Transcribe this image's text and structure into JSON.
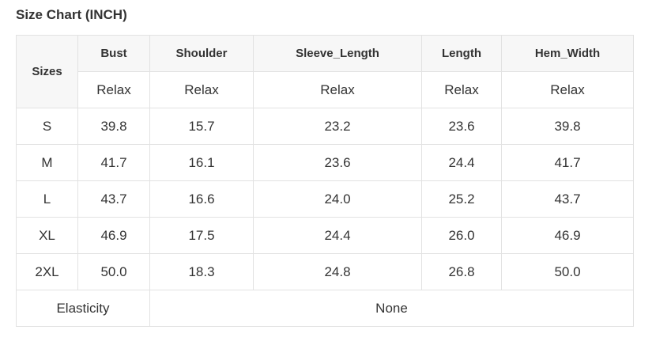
{
  "title": "Size Chart (INCH)",
  "header": {
    "sizes_label": "Sizes",
    "columns": [
      "Bust",
      "Shoulder",
      "Sleeve_Length",
      "Length",
      "Hem_Width"
    ],
    "fit": [
      "Relax",
      "Relax",
      "Relax",
      "Relax",
      "Relax"
    ]
  },
  "rows": [
    {
      "size": "S",
      "values": [
        "39.8",
        "15.7",
        "23.2",
        "23.6",
        "39.8"
      ]
    },
    {
      "size": "M",
      "values": [
        "41.7",
        "16.1",
        "23.6",
        "24.4",
        "41.7"
      ]
    },
    {
      "size": "L",
      "values": [
        "43.7",
        "16.6",
        "24.0",
        "25.2",
        "43.7"
      ]
    },
    {
      "size": "XL",
      "values": [
        "46.9",
        "17.5",
        "24.4",
        "26.0",
        "46.9"
      ]
    },
    {
      "size": "2XL",
      "values": [
        "50.0",
        "18.3",
        "24.8",
        "26.8",
        "50.0"
      ]
    }
  ],
  "footer": {
    "label": "Elasticity",
    "value": "None"
  }
}
